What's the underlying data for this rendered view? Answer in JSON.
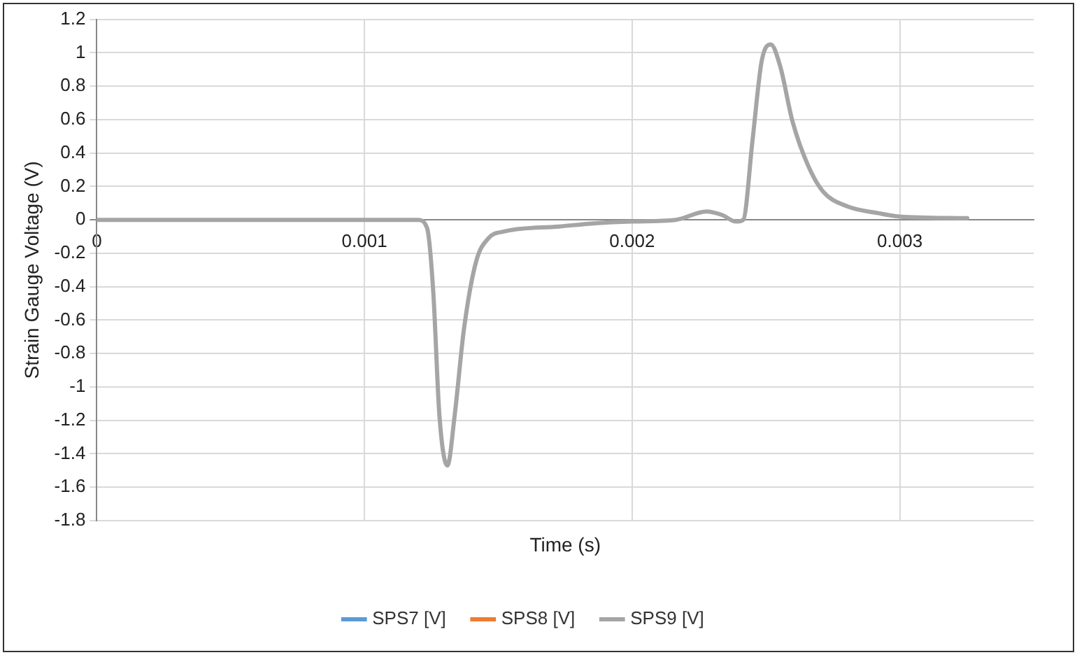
{
  "chart_data": {
    "type": "line",
    "xlabel": "Time (s)",
    "ylabel": "Strain Gauge Voltage (V)",
    "x": [
      0,
      0.0012,
      0.001234,
      0.001257,
      0.00128,
      0.00131,
      0.001337,
      0.001372,
      0.001417,
      0.001463,
      0.00152,
      0.001727,
      0.001865,
      0.002,
      0.002163,
      0.002278,
      0.002335,
      0.002388,
      0.002415,
      0.00245,
      0.002484,
      0.002518,
      0.002553,
      0.002599,
      0.002656,
      0.002713,
      0.002805,
      0.00292,
      0.003,
      0.003252
    ],
    "series": [
      {
        "name": "SPS7 [V]",
        "color": "#5b9bd5",
        "values": [
          null,
          null,
          null,
          null,
          null,
          null,
          null,
          null,
          null,
          null,
          null,
          null,
          null,
          null,
          null,
          null,
          null,
          null,
          null,
          null,
          null,
          null,
          null,
          null,
          null,
          null,
          null,
          null,
          null,
          null
        ]
      },
      {
        "name": "SPS8 [V]",
        "color": "#ed7d31",
        "values": [
          null,
          null,
          null,
          null,
          null,
          null,
          null,
          null,
          null,
          null,
          null,
          null,
          null,
          null,
          null,
          null,
          null,
          null,
          null,
          null,
          null,
          null,
          null,
          null,
          null,
          null,
          null,
          null,
          null,
          null
        ]
      },
      {
        "name": "SPS9 [V]",
        "color": "#a5a5a5",
        "values": [
          0,
          0,
          -0.05,
          -0.43,
          -1.17,
          -1.47,
          -1.17,
          -0.65,
          -0.25,
          -0.11,
          -0.07,
          -0.04,
          -0.02,
          -0.01,
          0,
          0.05,
          0.03,
          -0.01,
          0,
          0.48,
          0.95,
          1.05,
          0.92,
          0.59,
          0.33,
          0.17,
          0.08,
          0.04,
          0.02,
          0.01
        ]
      }
    ],
    "xlim": [
      0,
      0.0035
    ],
    "xticks": [
      0,
      0.001,
      0.002,
      0.003
    ],
    "ylim": [
      -1.8,
      1.2
    ],
    "yticks": [
      -1.8,
      -1.6,
      -1.4,
      -1.2,
      -1,
      -0.8,
      -0.6,
      -0.4,
      -0.2,
      0,
      0.2,
      0.4,
      0.6,
      0.8,
      1,
      1.2
    ],
    "grid": true,
    "legend": "bottom",
    "marker": "none",
    "line_style": "solid"
  }
}
